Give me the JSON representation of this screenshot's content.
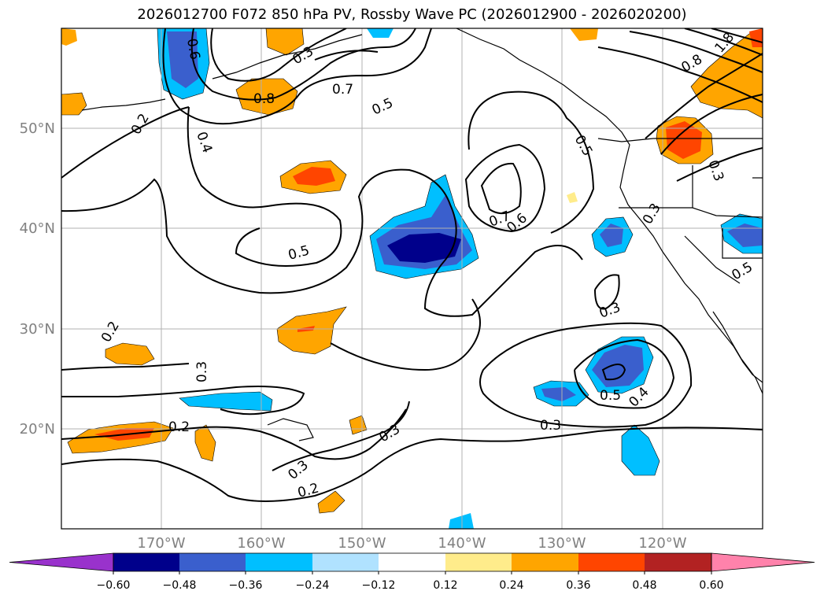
{
  "title": "2026012700 F072 850 hPa PV, Rossby Wave PC (2026012900 - 2026020200)",
  "map": {
    "lat_labels": [
      "50°N",
      "40°N",
      "30°N",
      "20°N"
    ],
    "lon_labels": [
      "170°W",
      "160°W",
      "150°W",
      "140°W",
      "130°W",
      "120°W"
    ],
    "extent": {
      "lon_min": -180,
      "lon_max": -110,
      "lat_min": 10,
      "lat_max": 60
    }
  },
  "contour_labels": [
    "0.2",
    "0.4",
    "0.6",
    "0.8",
    "0.7",
    "0.5",
    "0.5",
    "0.7",
    "0.6",
    "0.5",
    "0.3",
    "0.3",
    "0.3",
    "0.5",
    "0.4",
    "0.3",
    "0.3",
    "0.2",
    "0.3",
    "0.2",
    "0.2",
    "0.3",
    "1.8",
    "0.8",
    "0.3",
    "0.5"
  ],
  "colorbar": {
    "ticks": [
      "−0.60",
      "−0.48",
      "−0.36",
      "−0.24",
      "−0.12",
      "0.12",
      "0.24",
      "0.36",
      "0.48",
      "0.60"
    ],
    "colors": [
      "#9932cc",
      "#00008b",
      "#3a5fcd",
      "#00bfff",
      "#b0e2ff",
      "#ffffff",
      "#ffec8b",
      "#ffa500",
      "#ff4500",
      "#b22222",
      "#ff82ab"
    ]
  },
  "colors": {
    "neg1": "#b0e2ff",
    "neg2": "#00bfff",
    "neg3": "#3a5fcd",
    "neg4": "#00008b",
    "pos1": "#ffec8b",
    "pos2": "#ffa500",
    "pos3": "#ff4500",
    "pos4": "#b22222"
  }
}
